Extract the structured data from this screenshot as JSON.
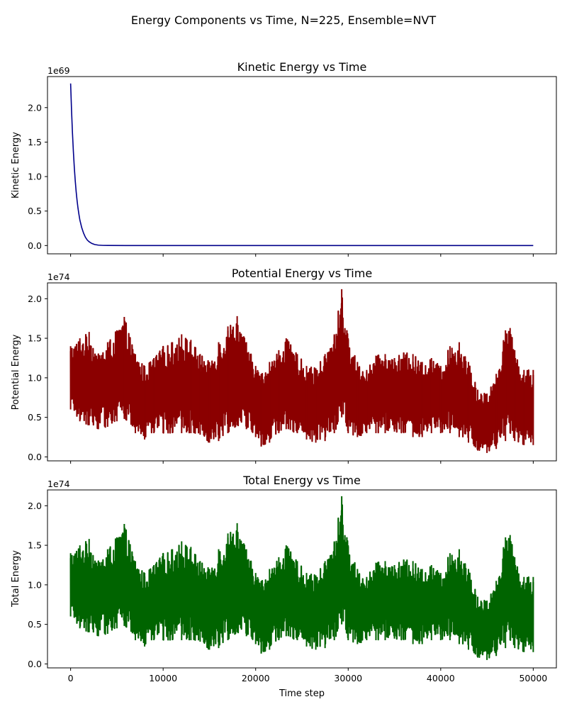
{
  "figure": {
    "suptitle": "Energy Components vs Time, N=225, Ensemble=NVT",
    "xlabel": "Time step"
  },
  "chart_data": [
    {
      "type": "line",
      "title": "Kinetic Energy vs Time",
      "ylabel": "Kinetic Energy",
      "offset_label": "1e69",
      "color": "#00008b",
      "xlim": [
        -2500,
        52500
      ],
      "ylim": [
        -0.12,
        2.45
      ],
      "xticks": [
        0,
        10000,
        20000,
        30000,
        40000,
        50000
      ],
      "xtick_labels_shown": false,
      "yticks": [
        0.0,
        0.5,
        1.0,
        1.5,
        2.0
      ],
      "ytick_labels": [
        "0.0",
        "0.5",
        "1.0",
        "1.5",
        "2.0"
      ],
      "grid": false,
      "series": [
        {
          "x": [
            0,
            100,
            200,
            300,
            400,
            500,
            600,
            700,
            800,
            900,
            1000,
            1200,
            1400,
            1600,
            1800,
            2000,
            2300,
            2600,
            3000,
            3500,
            4000,
            6000,
            10000,
            20000,
            30000,
            40000,
            50000
          ],
          "y": [
            2.35,
            1.96,
            1.63,
            1.36,
            1.13,
            0.94,
            0.78,
            0.65,
            0.54,
            0.45,
            0.37,
            0.26,
            0.18,
            0.12,
            0.08,
            0.055,
            0.03,
            0.015,
            0.006,
            0.002,
            0.001,
            0.0,
            0.0,
            0.0,
            0.0,
            0.0,
            0.0
          ]
        }
      ]
    },
    {
      "type": "line",
      "title": "Potential Energy vs Time",
      "ylabel": "Potential Energy",
      "offset_label": "1e74",
      "color": "#8b0000",
      "xlim": [
        -2500,
        52500
      ],
      "ylim": [
        -0.05,
        2.2
      ],
      "xticks": [
        0,
        10000,
        20000,
        30000,
        40000,
        50000
      ],
      "xtick_labels_shown": false,
      "yticks": [
        0.0,
        0.5,
        1.0,
        1.5,
        2.0
      ],
      "ytick_labels": [
        "0.0",
        "0.5",
        "1.0",
        "1.5",
        "2.0"
      ],
      "grid": false,
      "series": [
        {
          "x": [
            0,
            1000,
            2000,
            3000,
            4000,
            5000,
            5800,
            7000,
            8000,
            9000,
            10000,
            11000,
            12000,
            13000,
            14000,
            15000,
            16000,
            17000,
            18000,
            19000,
            20000,
            20600,
            21500,
            22500,
            23300,
            24500,
            25500,
            26500,
            27500,
            28500,
            29300,
            30000,
            31000,
            32000,
            33000,
            34000,
            35000,
            36000,
            37000,
            38000,
            39000,
            40000,
            41000,
            42000,
            43000,
            44000,
            45000,
            46000,
            47000,
            47500,
            48000,
            49000,
            50000
          ],
          "min": [
            0.6,
            0.45,
            0.4,
            0.35,
            0.38,
            0.45,
            0.48,
            0.3,
            0.22,
            0.3,
            0.3,
            0.3,
            0.3,
            0.3,
            0.28,
            0.18,
            0.2,
            0.3,
            0.4,
            0.35,
            0.25,
            0.13,
            0.18,
            0.3,
            0.35,
            0.3,
            0.22,
            0.18,
            0.2,
            0.3,
            0.5,
            0.3,
            0.25,
            0.3,
            0.3,
            0.3,
            0.32,
            0.3,
            0.25,
            0.25,
            0.3,
            0.3,
            0.3,
            0.25,
            0.18,
            0.08,
            0.05,
            0.1,
            0.2,
            0.3,
            0.2,
            0.15,
            0.15
          ],
          "max": [
            1.4,
            1.5,
            1.58,
            1.3,
            1.45,
            1.6,
            1.77,
            1.3,
            1.15,
            1.25,
            1.4,
            1.45,
            1.55,
            1.48,
            1.3,
            1.2,
            1.45,
            1.65,
            1.78,
            1.45,
            1.15,
            1.05,
            1.2,
            1.35,
            1.5,
            1.3,
            1.15,
            1.12,
            1.3,
            1.55,
            2.12,
            1.5,
            1.2,
            1.1,
            1.28,
            1.3,
            1.25,
            1.32,
            1.3,
            1.2,
            1.25,
            1.15,
            1.4,
            1.45,
            1.2,
            0.85,
            0.8,
            1.05,
            1.6,
            1.63,
            1.35,
            1.1,
            1.1
          ]
        }
      ]
    },
    {
      "type": "line",
      "title": "Total Energy vs Time",
      "ylabel": "Total Energy",
      "offset_label": "1e74",
      "color": "#006400",
      "xlim": [
        -2500,
        52500
      ],
      "ylim": [
        -0.05,
        2.2
      ],
      "xticks": [
        0,
        10000,
        20000,
        30000,
        40000,
        50000
      ],
      "xtick_labels": [
        "0",
        "10000",
        "20000",
        "30000",
        "40000",
        "50000"
      ],
      "yticks": [
        0.0,
        0.5,
        1.0,
        1.5,
        2.0
      ],
      "ytick_labels": [
        "0.0",
        "0.5",
        "1.0",
        "1.5",
        "2.0"
      ],
      "grid": false,
      "series": [
        {
          "x": [
            0,
            1000,
            2000,
            3000,
            4000,
            5000,
            5800,
            7000,
            8000,
            9000,
            10000,
            11000,
            12000,
            13000,
            14000,
            15000,
            16000,
            17000,
            18000,
            19000,
            20000,
            20600,
            21500,
            22500,
            23300,
            24500,
            25500,
            26500,
            27500,
            28500,
            29300,
            30000,
            31000,
            32000,
            33000,
            34000,
            35000,
            36000,
            37000,
            38000,
            39000,
            40000,
            41000,
            42000,
            43000,
            44000,
            45000,
            46000,
            47000,
            47500,
            48000,
            49000,
            50000
          ],
          "min": [
            0.6,
            0.45,
            0.4,
            0.35,
            0.38,
            0.45,
            0.48,
            0.3,
            0.22,
            0.3,
            0.3,
            0.3,
            0.3,
            0.3,
            0.28,
            0.18,
            0.2,
            0.3,
            0.4,
            0.35,
            0.25,
            0.13,
            0.18,
            0.3,
            0.35,
            0.3,
            0.22,
            0.18,
            0.2,
            0.3,
            0.5,
            0.3,
            0.25,
            0.3,
            0.3,
            0.3,
            0.32,
            0.3,
            0.25,
            0.25,
            0.3,
            0.3,
            0.3,
            0.25,
            0.18,
            0.08,
            0.05,
            0.1,
            0.2,
            0.3,
            0.2,
            0.15,
            0.15
          ],
          "max": [
            1.4,
            1.5,
            1.58,
            1.3,
            1.45,
            1.6,
            1.77,
            1.3,
            1.15,
            1.25,
            1.4,
            1.45,
            1.55,
            1.48,
            1.3,
            1.2,
            1.45,
            1.65,
            1.78,
            1.45,
            1.15,
            1.05,
            1.2,
            1.35,
            1.5,
            1.3,
            1.15,
            1.12,
            1.3,
            1.55,
            2.12,
            1.5,
            1.2,
            1.1,
            1.28,
            1.3,
            1.25,
            1.32,
            1.3,
            1.2,
            1.25,
            1.15,
            1.4,
            1.45,
            1.2,
            0.85,
            0.8,
            1.05,
            1.6,
            1.63,
            1.35,
            1.1,
            1.1
          ]
        }
      ]
    }
  ]
}
